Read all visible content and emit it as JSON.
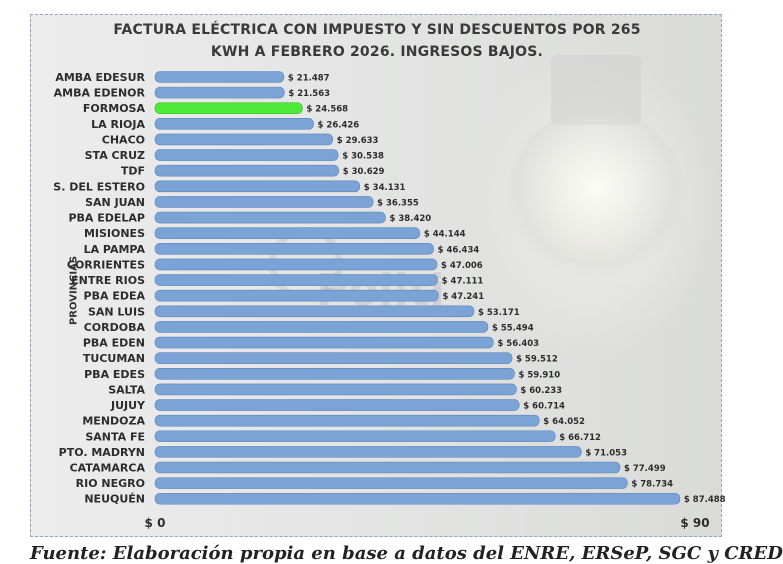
{
  "chart_data": {
    "type": "bar",
    "orientation": "horizontal",
    "title_lines": [
      "FACTURA ELÉCTRICA CON IMPUESTO Y SIN DESCUENTOS POR 265",
      "KWH A FEBRERO 2026. INGRESOS BAJOS."
    ],
    "ylabel": "PROVINCIAS",
    "xlabel": "",
    "x_ticks": [
      "$ 0",
      "$ 90"
    ],
    "xlim": [
      0,
      90000
    ],
    "grid": false,
    "legend": "none",
    "categories": [
      "AMBA EDESUR",
      "AMBA EDENOR",
      "FORMOSA",
      "LA RIOJA",
      "CHACO",
      "STA CRUZ",
      "TDF",
      "S. DEL ESTERO",
      "SAN JUAN",
      "PBA EDELAP",
      "MISIONES",
      "LA PAMPA",
      "CORRIENTES",
      "ENTRE RIOS",
      "PBA EDEA",
      "SAN LUIS",
      "CORDOBA",
      "PBA EDEN",
      "TUCUMAN",
      "PBA EDES",
      "SALTA",
      "JUJUY",
      "MENDOZA",
      "SANTA FE",
      "PTO. MADRYN",
      "CATAMARCA",
      "RIO NEGRO",
      "NEUQUÉN"
    ],
    "values": [
      21487,
      21563,
      24568,
      26426,
      29633,
      30538,
      30629,
      34131,
      36355,
      38420,
      44144,
      46434,
      47006,
      47111,
      47241,
      53171,
      55494,
      56403,
      59512,
      59910,
      60233,
      60714,
      64052,
      66712,
      71053,
      77499,
      78734,
      87488
    ],
    "value_labels": [
      "$ 21.487",
      "$ 21.563",
      "$ 24.568",
      "$ 26.426",
      "$ 29.633",
      "$ 30.538",
      "$ 30.629",
      "$ 34.131",
      "$ 36.355",
      "$ 38.420",
      "$ 44.144",
      "$ 46.434",
      "$ 47.006",
      "$ 47.111",
      "$ 47.241",
      "$ 53.171",
      "$ 55.494",
      "$ 56.403",
      "$ 59.512",
      "$ 59.910",
      "$ 60.233",
      "$ 60.714",
      "$ 64.052",
      "$ 66.712",
      "$ 71.053",
      "$ 77.499",
      "$ 78.734",
      "$ 87.488"
    ],
    "highlight_index": 2,
    "colors": {
      "bar": "#7ba3d6",
      "bar_edge": "#5b86bd",
      "highlight": "#4ee83a"
    }
  },
  "watermark": "Politi",
  "footer_text": "Fuente: Elaboración propia en base a datos del ENRE, ERSeP, SGC y CRED"
}
